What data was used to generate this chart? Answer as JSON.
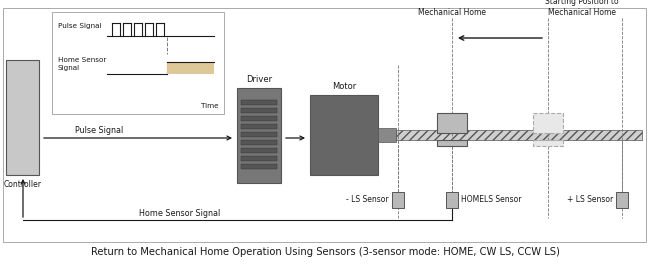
{
  "bg_color": "#ffffff",
  "title": "Return to Mechanical Home Operation Using Sensors (3-sensor mode: HOME, CW LS, CCW LS)",
  "title_fontsize": 7.2,
  "controller_label": "Controller",
  "driver_label": "Driver",
  "motor_label": "Motor",
  "pulse_signal_arrow_label": "Pulse Signal",
  "home_sensor_signal_arrow_label": "Home Sensor Signal",
  "mechanical_home_label": "Mechanical Home",
  "starting_position_label": "Starting Position to\nMechanical Home",
  "minus_ls_label": "- LS Sensor",
  "homels_label": "HOMELS Sensor",
  "plus_ls_label": "+ LS Sensor",
  "waveform_pulse_label": "Pulse Signal",
  "waveform_home_label": "Home Sensor\nSignal",
  "waveform_time_label": "Time",
  "gray_light": "#cccccc",
  "gray_med": "#aaaaaa",
  "gray_dark": "#555555",
  "gray_driver": "#777777",
  "gray_motor": "#666666",
  "beige": "#dfc898",
  "white": "#ffffff",
  "black": "#1a1a1a",
  "dashed_color": "#777777",
  "sensor_fill": "#b8b8b8",
  "block_solid_fill": "#bbbbbb",
  "block_dashed_fill": "#e8e8e8",
  "controller_fill": "#c8c8c8",
  "rail_fill": "#d0d0d0",
  "rail_hatch_color": "#aaaaaa"
}
